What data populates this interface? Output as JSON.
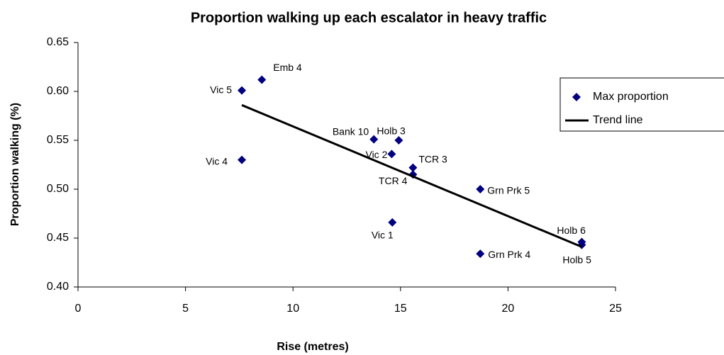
{
  "chart_data": {
    "type": "scatter",
    "title": "Proportion walking up each escalator in heavy traffic",
    "x_label": "Rise (metres)",
    "y_label": "Proportion walking (%)",
    "xlim": [
      0,
      25
    ],
    "xticks": [
      0,
      5,
      10,
      15,
      20,
      25
    ],
    "ylim": [
      0.4,
      0.65
    ],
    "yticks": [
      {
        "value": 0.4,
        "label": "0.40"
      },
      0.45,
      {
        "value": 0.5,
        "label": "0.50"
      },
      0.55,
      {
        "value": 0.6,
        "label": "0.60"
      },
      0.65
    ],
    "legend": "right",
    "series": [
      {
        "name": "Max proportion",
        "color": "#000080",
        "type": "scatter",
        "x": [
          8.55,
          7.62,
          7.62,
          13.76,
          14.92,
          14.59,
          15.58,
          15.58,
          18.71,
          14.62,
          18.71,
          23.43,
          23.43
        ],
        "values": [
          0.612,
          0.601,
          0.53,
          0.551,
          0.55,
          0.536,
          0.522,
          0.515,
          0.5,
          0.466,
          0.434,
          0.446,
          0.443
        ],
        "labels": [
          "Emb 4",
          "Vic 5",
          "Vic 4",
          "Bank 10",
          "Holb 3",
          "Vic 2",
          "TCR 3",
          "TCR 4",
          "Grn Prk 5",
          "Vic 1",
          "Grn Prk 4",
          "Holb 6",
          "Holb 5"
        ]
      },
      {
        "name": "Trend line",
        "color": "#000000",
        "type": "line",
        "x": [
          7.62,
          23.43
        ],
        "values": [
          0.586,
          0.441
        ]
      }
    ]
  }
}
